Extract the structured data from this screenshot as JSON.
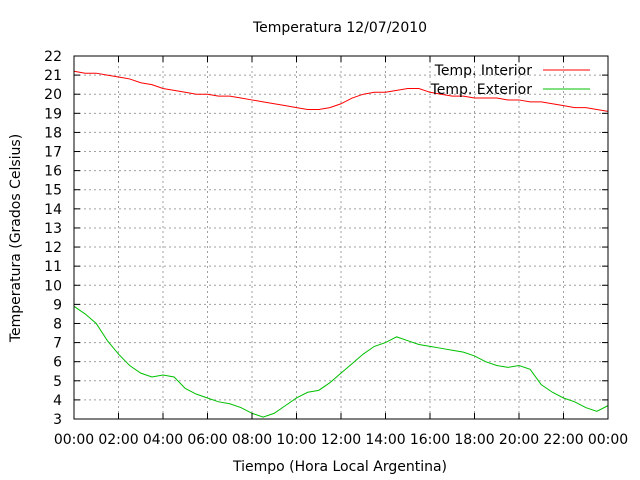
{
  "chart_data": {
    "type": "line",
    "title": "Temperatura 12/07/2010",
    "xlabel": "Tiempo (Hora Local Argentina)",
    "ylabel": "Temperatura (Grados Celsius)",
    "xlim": [
      0,
      24
    ],
    "ylim": [
      3,
      22
    ],
    "x_ticks": [
      "00:00",
      "02:00",
      "04:00",
      "06:00",
      "08:00",
      "10:00",
      "12:00",
      "14:00",
      "16:00",
      "18:00",
      "20:00",
      "22:00",
      "00:00"
    ],
    "y_ticks": [
      3,
      4,
      5,
      6,
      7,
      8,
      9,
      10,
      11,
      12,
      13,
      14,
      15,
      16,
      17,
      18,
      19,
      20,
      21,
      22
    ],
    "grid": true,
    "legend_position": "top-right",
    "series": [
      {
        "name": "Temp. Interior",
        "color": "#ff0000",
        "x": [
          0,
          0.5,
          1,
          1.5,
          2,
          2.5,
          3,
          3.5,
          4,
          4.5,
          5,
          5.5,
          6,
          6.5,
          7,
          7.5,
          8,
          8.5,
          9,
          9.5,
          10,
          10.5,
          11,
          11.5,
          12,
          12.5,
          13,
          13.5,
          14,
          14.5,
          15,
          15.5,
          16,
          16.5,
          17,
          17.5,
          18,
          18.5,
          19,
          19.5,
          20,
          20.5,
          21,
          21.5,
          22,
          22.5,
          23,
          23.5,
          24
        ],
        "values": [
          21.2,
          21.1,
          21.1,
          21.0,
          20.9,
          20.8,
          20.6,
          20.5,
          20.3,
          20.2,
          20.1,
          20.0,
          20.0,
          19.9,
          19.9,
          19.8,
          19.7,
          19.6,
          19.5,
          19.4,
          19.3,
          19.2,
          19.2,
          19.3,
          19.5,
          19.8,
          20.0,
          20.1,
          20.1,
          20.2,
          20.3,
          20.3,
          20.1,
          20.0,
          19.9,
          19.9,
          19.8,
          19.8,
          19.8,
          19.7,
          19.7,
          19.6,
          19.6,
          19.5,
          19.4,
          19.3,
          19.3,
          19.2,
          19.1
        ]
      },
      {
        "name": "Temp. Exterior",
        "color": "#00c000",
        "x": [
          0,
          0.5,
          1,
          1.5,
          2,
          2.5,
          3,
          3.5,
          4,
          4.5,
          5,
          5.5,
          6,
          6.5,
          7,
          7.5,
          8,
          8.5,
          9,
          9.5,
          10,
          10.5,
          11,
          11.5,
          12,
          12.5,
          13,
          13.5,
          14,
          14.5,
          15,
          15.5,
          16,
          16.5,
          17,
          17.5,
          18,
          18.5,
          19,
          19.5,
          20,
          20.5,
          21,
          21.5,
          22,
          22.5,
          23,
          23.5,
          24
        ],
        "values": [
          8.9,
          8.5,
          8.0,
          7.1,
          6.4,
          5.8,
          5.4,
          5.2,
          5.3,
          5.2,
          4.6,
          4.3,
          4.1,
          3.9,
          3.8,
          3.6,
          3.3,
          3.1,
          3.3,
          3.7,
          4.1,
          4.4,
          4.5,
          4.9,
          5.4,
          5.9,
          6.4,
          6.8,
          7.0,
          7.3,
          7.1,
          6.9,
          6.8,
          6.7,
          6.6,
          6.5,
          6.3,
          6.0,
          5.8,
          5.7,
          5.8,
          5.6,
          4.8,
          4.4,
          4.1,
          3.9,
          3.6,
          3.4,
          3.7
        ]
      }
    ]
  }
}
